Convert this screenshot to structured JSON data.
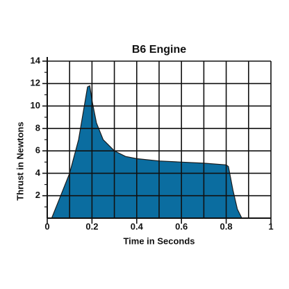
{
  "chart_data": {
    "type": "area",
    "title": "B6 Engine",
    "x_label": "Time in Seconds",
    "y_label": "Thrust in Newtons",
    "x": [
      0.02,
      0.05,
      0.1,
      0.14,
      0.17,
      0.18,
      0.19,
      0.2,
      0.22,
      0.25,
      0.3,
      0.35,
      0.4,
      0.5,
      0.6,
      0.7,
      0.8,
      0.81,
      0.83,
      0.85,
      0.87
    ],
    "values": [
      0,
      1.5,
      4,
      7,
      10.5,
      11.7,
      11.8,
      10.5,
      8.5,
      7,
      6,
      5.5,
      5.3,
      5.1,
      5,
      4.9,
      4.75,
      4.6,
      2.5,
      0.8,
      0
    ],
    "color": "#0b6da0",
    "xlim": [
      0,
      1
    ],
    "ylim": [
      0,
      14
    ],
    "xticks": [
      0,
      0.2,
      0.4,
      0.6,
      0.8,
      1
    ],
    "yticks": [
      2,
      4,
      6,
      8,
      10,
      12,
      14
    ],
    "xgrid": [
      0.1,
      0.2,
      0.3,
      0.4,
      0.5,
      0.6,
      0.7,
      0.8,
      0.9,
      1
    ],
    "yminor_ticks": [
      1,
      3,
      5,
      7,
      9,
      11,
      13
    ],
    "grid": true
  }
}
